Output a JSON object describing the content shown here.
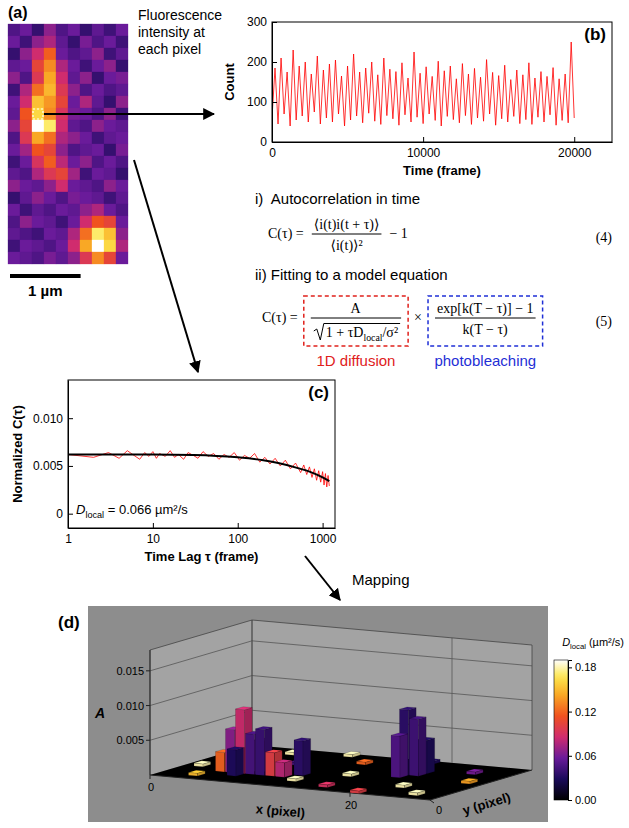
{
  "chart_data": [
    {
      "type": "heatmap",
      "panel": "(a)",
      "tick_labels": false,
      "zlim": [
        0,
        1
      ],
      "cells": [
        [
          0.25,
          0.3,
          0.2,
          0.35,
          0.25,
          0.3,
          0.2,
          0.28,
          0.22,
          0.3
        ],
        [
          0.3,
          0.22,
          0.35,
          0.4,
          0.28,
          0.2,
          0.32,
          0.25,
          0.3,
          0.22
        ],
        [
          0.2,
          0.35,
          0.45,
          0.62,
          0.3,
          0.25,
          0.28,
          0.35,
          0.22,
          0.28
        ],
        [
          0.28,
          0.3,
          0.55,
          0.7,
          0.4,
          0.3,
          0.22,
          0.3,
          0.35,
          0.2
        ],
        [
          0.35,
          0.25,
          0.5,
          0.75,
          0.45,
          0.28,
          0.35,
          0.2,
          0.3,
          0.32
        ],
        [
          0.22,
          0.4,
          0.65,
          0.78,
          0.5,
          0.35,
          0.25,
          0.3,
          0.25,
          0.28
        ],
        [
          0.3,
          0.45,
          0.8,
          0.72,
          0.55,
          0.3,
          0.4,
          0.28,
          0.2,
          0.35
        ],
        [
          0.28,
          0.6,
          0.85,
          0.7,
          0.48,
          0.32,
          0.3,
          0.25,
          0.35,
          0.22
        ],
        [
          0.35,
          0.55,
          1.0,
          0.9,
          0.45,
          0.28,
          0.25,
          0.35,
          0.3,
          0.28
        ],
        [
          0.25,
          0.5,
          0.75,
          0.65,
          0.4,
          0.35,
          0.3,
          0.22,
          0.28,
          0.3
        ],
        [
          0.3,
          0.38,
          0.6,
          0.55,
          0.35,
          0.25,
          0.28,
          0.3,
          0.2,
          0.32
        ],
        [
          0.22,
          0.3,
          0.48,
          0.62,
          0.42,
          0.3,
          0.35,
          0.25,
          0.3,
          0.25
        ],
        [
          0.28,
          0.25,
          0.4,
          0.5,
          0.55,
          0.38,
          0.22,
          0.3,
          0.28,
          0.2
        ],
        [
          0.35,
          0.3,
          0.28,
          0.35,
          0.45,
          0.3,
          0.28,
          0.25,
          0.35,
          0.3
        ],
        [
          0.2,
          0.28,
          0.35,
          0.3,
          0.25,
          0.32,
          0.3,
          0.28,
          0.22,
          0.28
        ],
        [
          0.3,
          0.22,
          0.28,
          0.25,
          0.3,
          0.28,
          0.35,
          0.4,
          0.3,
          0.25
        ],
        [
          0.25,
          0.35,
          0.3,
          0.28,
          0.22,
          0.3,
          0.45,
          0.6,
          0.55,
          0.3
        ],
        [
          0.28,
          0.25,
          0.22,
          0.3,
          0.28,
          0.4,
          0.65,
          0.9,
          0.8,
          0.35
        ],
        [
          0.22,
          0.3,
          0.28,
          0.25,
          0.3,
          0.45,
          0.75,
          1.0,
          0.85,
          0.4
        ],
        [
          0.3,
          0.28,
          0.25,
          0.32,
          0.28,
          0.35,
          0.5,
          0.7,
          0.55,
          0.3
        ]
      ],
      "highlight": {
        "row": 7,
        "col": 2
      },
      "pixel_size": 0.17,
      "scale_bar": {
        "value": 1,
        "label": "1 µm"
      }
    },
    {
      "type": "line",
      "panel": "(b)",
      "xlabel": "Time (frame)",
      "ylabel": "Count",
      "color": "#ff0000",
      "x": [
        0,
        200,
        400,
        600,
        800,
        1000,
        1200,
        1400,
        1600,
        1800,
        2000,
        2200,
        2400,
        2600,
        2800,
        3000,
        3200,
        3400,
        3600,
        3800,
        4000,
        4200,
        4400,
        4600,
        4800,
        5000,
        5200,
        5400,
        5600,
        5800,
        6000,
        6200,
        6400,
        6600,
        6800,
        7000,
        7200,
        7400,
        7600,
        7800,
        8000,
        8200,
        8400,
        8600,
        8800,
        9000,
        9200,
        9400,
        9600,
        9800,
        10000,
        10200,
        10400,
        10600,
        10800,
        11000,
        11200,
        11400,
        11600,
        11800,
        12000,
        12200,
        12400,
        12600,
        12800,
        13000,
        13200,
        13400,
        13600,
        13800,
        14000,
        14200,
        14400,
        14600,
        14800,
        15000,
        15200,
        15400,
        15600,
        15800,
        16000,
        16200,
        16400,
        16600,
        16800,
        17000,
        17200,
        17400,
        17600,
        17800,
        18000,
        18200,
        18400,
        18600,
        18800,
        19000,
        19200,
        19400,
        19600,
        19800,
        20000
      ],
      "values": [
        60,
        185,
        45,
        210,
        70,
        175,
        40,
        230,
        55,
        190,
        65,
        200,
        50,
        170,
        75,
        215,
        45,
        180,
        60,
        195,
        50,
        205,
        70,
        165,
        40,
        190,
        55,
        220,
        65,
        175,
        48,
        185,
        72,
        200,
        52,
        168,
        44,
        210,
        66,
        182,
        58,
        176,
        42,
        198,
        68,
        160,
        50,
        225,
        62,
        172,
        46,
        188,
        70,
        164,
        54,
        202,
        40,
        178,
        64,
        190,
        56,
        158,
        48,
        196,
        66,
        170,
        44,
        184,
        60,
        162,
        52,
        206,
        70,
        174,
        42,
        166,
        58,
        192,
        50,
        156,
        64,
        180,
        46,
        168,
        56,
        198,
        44,
        160,
        62,
        176,
        50,
        164,
        68,
        186,
        42,
        158,
        54,
        170,
        48,
        250,
        60
      ],
      "xlim": [
        0,
        22500
      ],
      "xticks": [
        0,
        10000,
        20000
      ],
      "ylim": [
        0,
        300
      ],
      "yticks": [
        0,
        100,
        200,
        300
      ]
    },
    {
      "type": "line",
      "panel": "(c)",
      "log": "x",
      "xlabel": "Time Lag τ (frame)",
      "ylabel": "Normalized C(τ)",
      "xlim": [
        1,
        1400
      ],
      "xticks": [
        1,
        10,
        100,
        1000
      ],
      "ylim": [
        -0.0015,
        0.014
      ],
      "yticks": [
        0,
        0.005,
        {
          "value": 0.01,
          "label": "0.010"
        }
      ],
      "series": [
        {
          "color": "#ff0000",
          "x": [
            1,
            2,
            3,
            4,
            5,
            6,
            7,
            8,
            9,
            10,
            11,
            12,
            14,
            16,
            18,
            20,
            23,
            26,
            30,
            34,
            39,
            45,
            52,
            60,
            69,
            79,
            91,
            105,
            120,
            138,
            158,
            182,
            209,
            240,
            276,
            317,
            364,
            418,
            480,
            551,
            600,
            650,
            700,
            750,
            800,
            850,
            900,
            950,
            1000,
            1040,
            1080,
            1120,
            1160,
            1200
          ],
          "values": [
            0.0062,
            0.0059,
            0.0064,
            0.0058,
            0.0066,
            0.0061,
            0.0057,
            0.0064,
            0.006,
            0.0065,
            0.0058,
            0.0063,
            0.006,
            0.0066,
            0.0059,
            0.0062,
            0.0057,
            0.0064,
            0.0061,
            0.0058,
            0.0065,
            0.006,
            0.0063,
            0.0057,
            0.0062,
            0.0059,
            0.0064,
            0.0056,
            0.0061,
            0.0058,
            0.0063,
            0.0054,
            0.0059,
            0.0052,
            0.0058,
            0.005,
            0.0056,
            0.0047,
            0.0053,
            0.0043,
            0.0051,
            0.0041,
            0.0049,
            0.0038,
            0.0047,
            0.0035,
            0.0045,
            0.0033,
            0.0044,
            0.003,
            0.0042,
            0.0028,
            0.004,
            0.0029
          ]
        },
        {
          "color": "#000000",
          "x": [
            1,
            3,
            10,
            30,
            100,
            200,
            300,
            500,
            700,
            1000,
            1200
          ],
          "values": [
            0.0062,
            0.0062,
            0.0062,
            0.00615,
            0.0059,
            0.0056,
            0.0053,
            0.0048,
            0.0044,
            0.0038,
            0.0034
          ]
        }
      ],
      "annotation": {
        "symbol": "D",
        "subscript": "local",
        "text": " = 0.066 µm²/s"
      }
    },
    {
      "type": "bar3d",
      "panel": "(d)",
      "xlabel": "x (pixel)",
      "ylabel": "y (pixel)",
      "zlabel": "A",
      "grid": true,
      "xlim": [
        0,
        28
      ],
      "xticks": [
        0,
        20
      ],
      "ylim": [
        0,
        12
      ],
      "yticks": [
        0
      ],
      "zlim": [
        0,
        0.018
      ],
      "zticks": [
        0.005,
        {
          "value": 0.01,
          "label": "0.010"
        },
        0.015
      ],
      "x": [
        2,
        3,
        5,
        8,
        12,
        13,
        15,
        16,
        22,
        24,
        25,
        26,
        10,
        18,
        1,
        20,
        4,
        7,
        5,
        6,
        20,
        7,
        19,
        8,
        11,
        6,
        20,
        9,
        10,
        19
      ],
      "y": [
        9,
        1,
        10,
        7,
        2,
        9,
        5,
        1,
        3,
        9,
        1,
        6,
        11,
        11,
        4,
        0,
        3,
        4,
        3,
        3,
        8,
        3,
        7,
        3,
        4,
        2,
        7,
        3,
        3,
        6
      ],
      "values": [
        0.0004,
        0.0004,
        0.0004,
        0.0004,
        0.0004,
        0.0004,
        0.0004,
        0.0004,
        0.0004,
        0.0004,
        0.0004,
        0.0004,
        0.0004,
        0.0004,
        0.0004,
        0.0004,
        0.0028,
        0.0045,
        0.0062,
        0.0092,
        0.0048,
        0.0058,
        0.0094,
        0.0066,
        0.005,
        0.0038,
        0.0082,
        0.0034,
        0.0021,
        0.006
      ],
      "d_local": [
        0.18,
        0.15,
        0.18,
        0.045,
        0.18,
        0.12,
        0.18,
        0.09,
        0.18,
        0.06,
        0.18,
        0.14,
        0.18,
        0.03,
        0.18,
        0.1,
        0.12,
        0.055,
        0.066,
        0.085,
        0.03,
        0.045,
        0.035,
        0.04,
        0.035,
        0.03,
        0.042,
        0.1,
        0.08,
        0.048
      ],
      "colorbar": {
        "lim": [
          0,
          0.19
        ],
        "ticks": [
          {
            "value": 0,
            "label": "0.00"
          },
          0.06,
          0.12,
          0.18
        ],
        "label": "D",
        "label_sub": "local",
        "label_unit": " (µm²/s)"
      }
    }
  ],
  "diagram": {
    "pixel_text": "Fluorescence intensity at each pixel",
    "step1": "i)  Autocorrelation in time",
    "eq4": {
      "lhs": "C(τ) =",
      "numerator": "⟨i(t)i(t + τ)⟩",
      "denominator": "⟨i(t)⟩²",
      "tail": "− 1",
      "number": "(4)"
    },
    "step2": "ii) Fitting to a model equation",
    "eq5": {
      "lhs": "C(τ) =",
      "diffusion_numerator": "A",
      "diffusion_denominator": "1 + τD",
      "diffusion_subscript": "local",
      "diffusion_tail": "/σ²",
      "times": "×",
      "bleach_numerator": "exp[k(T − τ)] − 1",
      "bleach_denominator": "k(T − τ)",
      "number": "(5)"
    },
    "diffusion_label": {
      "text": "1D diffusion",
      "color": "#e0201b"
    },
    "bleach_label": {
      "text": "photobleaching",
      "color": "#1f2fd6"
    },
    "mapping": "Mapping"
  }
}
